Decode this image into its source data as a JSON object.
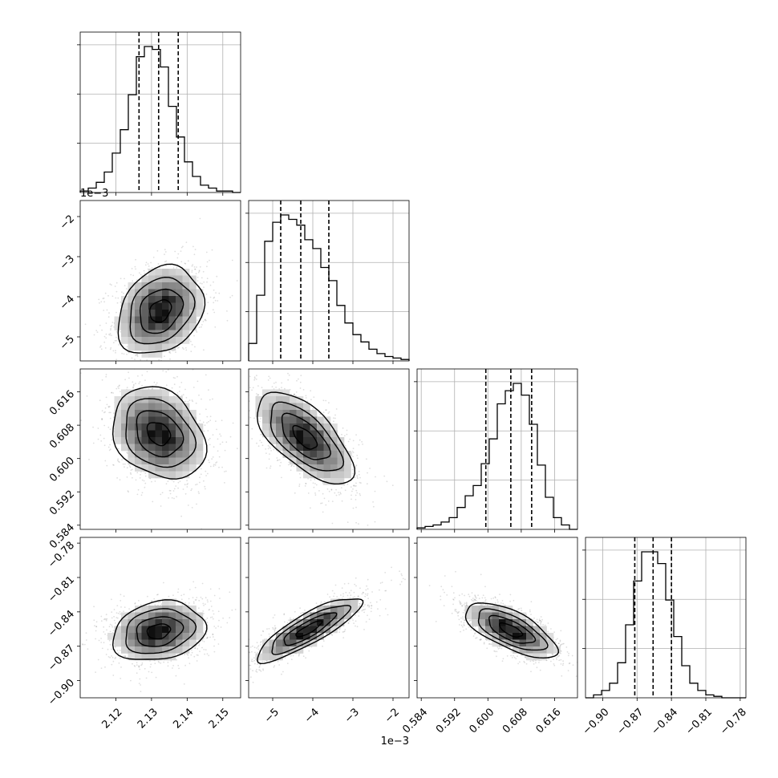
{
  "chart_data": {
    "type": "corner",
    "grid": true,
    "quantiles_marked": [
      0.16,
      0.5,
      0.84
    ],
    "parameters": [
      {
        "id": "p1",
        "range": [
          2.11,
          2.155
        ],
        "ticks": [
          2.12,
          2.13,
          2.14,
          2.15
        ],
        "tick_labels": [
          "2.12",
          "2.13",
          "2.14",
          "2.15"
        ],
        "offset_label": "",
        "quantiles": [
          2.1265,
          2.132,
          2.1375
        ],
        "histogram": [
          0.01,
          0.03,
          0.07,
          0.14,
          0.27,
          0.43,
          0.67,
          0.93,
          1.0,
          0.98,
          0.86,
          0.59,
          0.38,
          0.21,
          0.11,
          0.05,
          0.03,
          0.01,
          0.01,
          0.0
        ]
      },
      {
        "id": "p2",
        "range": [
          -5.6,
          -1.6
        ],
        "ticks": [
          -5,
          -4,
          -3,
          -2
        ],
        "tick_labels": [
          "−5",
          "−4",
          "−3",
          "−2"
        ],
        "offset_label": "1e−3",
        "quantiles": [
          -4.8,
          -4.3,
          -3.6
        ],
        "histogram": [
          0.12,
          0.45,
          0.82,
          0.95,
          1.0,
          0.97,
          0.93,
          0.83,
          0.77,
          0.64,
          0.55,
          0.38,
          0.26,
          0.18,
          0.13,
          0.08,
          0.05,
          0.03,
          0.02,
          0.01
        ]
      },
      {
        "id": "p3",
        "range": [
          0.583,
          0.6215
        ],
        "ticks": [
          0.584,
          0.592,
          0.6,
          0.608,
          0.616
        ],
        "tick_labels": [
          "0.584",
          "0.592",
          "0.600",
          "0.608",
          "0.616"
        ],
        "offset_label": "",
        "quantiles": [
          0.5995,
          0.6055,
          0.6105
        ],
        "histogram": [
          0.01,
          0.02,
          0.03,
          0.05,
          0.08,
          0.15,
          0.23,
          0.3,
          0.45,
          0.62,
          0.86,
          0.95,
          1.0,
          0.92,
          0.72,
          0.44,
          0.22,
          0.08,
          0.03,
          0.0
        ]
      },
      {
        "id": "p4",
        "range": [
          -0.915,
          -0.775
        ],
        "ticks": [
          -0.9,
          -0.87,
          -0.84,
          -0.81,
          -0.78
        ],
        "tick_labels": [
          "−0.90",
          "−0.87",
          "−0.84",
          "−0.81",
          "−0.78"
        ],
        "offset_label": "",
        "quantiles": [
          -0.872,
          -0.856,
          -0.84
        ],
        "histogram": [
          0.0,
          0.02,
          0.05,
          0.1,
          0.24,
          0.5,
          0.8,
          1.0,
          1.0,
          0.92,
          0.67,
          0.42,
          0.22,
          0.1,
          0.05,
          0.02,
          0.01,
          0.0,
          0.0,
          0.0
        ]
      }
    ],
    "pairs": [
      {
        "x": "p1",
        "y": "p2",
        "mean": [
          2.1325,
          -4.35
        ],
        "sd": [
          0.006,
          0.55
        ],
        "corr": 0.25
      },
      {
        "x": "p1",
        "y": "p3",
        "mean": [
          2.132,
          0.606
        ],
        "sd": [
          0.0065,
          0.0055
        ],
        "corr": -0.25
      },
      {
        "x": "p2",
        "y": "p3",
        "mean": [
          -4.2,
          0.605
        ],
        "sd": [
          0.6,
          0.0055
        ],
        "corr": -0.65
      },
      {
        "x": "p1",
        "y": "p4",
        "mean": [
          2.132,
          -0.857
        ],
        "sd": [
          0.0065,
          0.013
        ],
        "corr": 0.2
      },
      {
        "x": "p2",
        "y": "p4",
        "mean": [
          -4.1,
          -0.855
        ],
        "sd": [
          0.65,
          0.014
        ],
        "corr": 0.85
      },
      {
        "x": "p3",
        "y": "p4",
        "mean": [
          0.6055,
          -0.856
        ],
        "sd": [
          0.0055,
          0.012
        ],
        "corr": -0.68
      }
    ]
  }
}
